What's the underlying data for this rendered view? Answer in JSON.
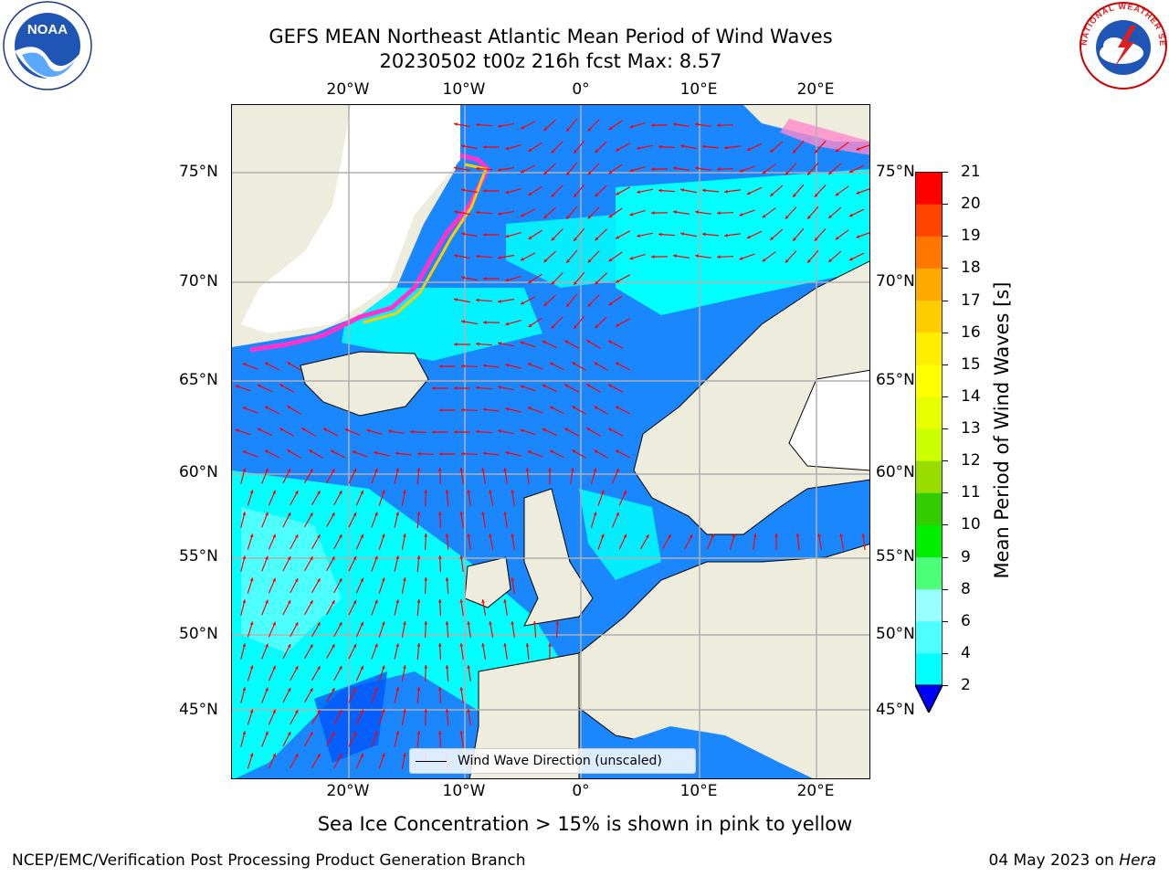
{
  "title": {
    "line1": "GEFS MEAN Northeast Atlantic Mean Period of Wind Waves",
    "line2": "20230502 t00z 216h fcst   Max: 8.57"
  },
  "logos": {
    "left": "NOAA",
    "left_ring": "NATIONAL OCEANIC AND ATMOSPHERIC ADMINISTRATION · U.S. DEPARTMENT OF COMMERCE",
    "right_ring": "NATIONAL WEATHER SERVICE"
  },
  "map": {
    "projection": "stereographic",
    "lon_labels": [
      "20°W",
      "10°W",
      "0°",
      "10°E",
      "20°E"
    ],
    "lat_labels": [
      "75°N",
      "70°N",
      "65°N",
      "60°N",
      "55°N",
      "50°N",
      "45°N"
    ],
    "gridlines": true,
    "colors": {
      "land": "#eeecdc",
      "ice_free_white": "#ffffff",
      "ocean_2_4": "#1a87ff",
      "ocean_4_6": "#00ffff",
      "ocean_6_8": "#4dfcff",
      "ocean_lt2": "#0000ff",
      "arrows": "#ff0000",
      "grid": "#b0b0b0"
    },
    "legend": "Wind Wave Direction (unscaled)"
  },
  "colorbar": {
    "label": "Mean Period of Wind Waves [s]",
    "ticks": [
      "2",
      "4",
      "6",
      "8",
      "9",
      "10",
      "11",
      "12",
      "13",
      "14",
      "15",
      "16",
      "17",
      "18",
      "19",
      "20",
      "21"
    ],
    "colors": [
      "#0070ff",
      "#00ffff",
      "#4dffff",
      "#99ffff",
      "#4dff77",
      "#00ee00",
      "#33cc00",
      "#99dd00",
      "#ccff00",
      "#e8ff00",
      "#ffff00",
      "#ffee00",
      "#ffcc00",
      "#ffaa00",
      "#ff7700",
      "#ff4400",
      "#ff0000"
    ],
    "under_color": "#0000ff"
  },
  "caption": "Sea Ice Concentration > 15% is shown in pink to yellow",
  "footer": {
    "left": "NCEP/EMC/Verification Post Processing Product Generation Branch",
    "date": "04 May 2023 on",
    "system": "Hera"
  }
}
